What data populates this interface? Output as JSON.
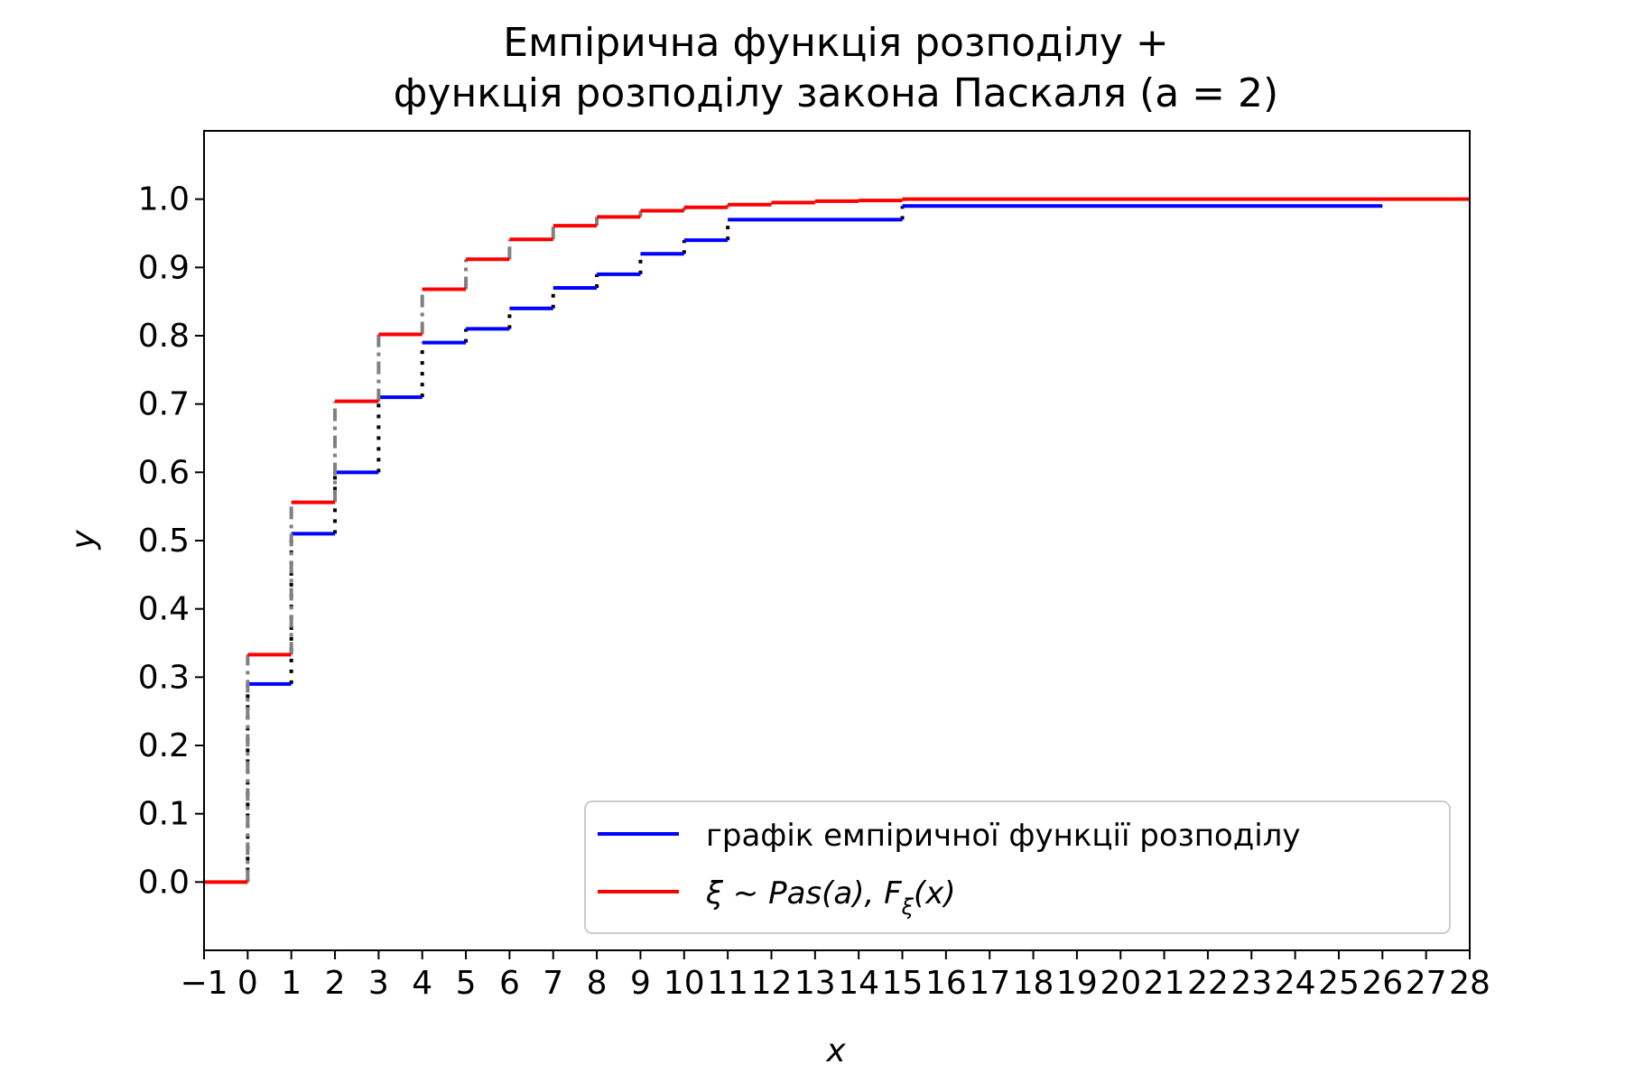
{
  "chart_data": {
    "type": "line",
    "title": [
      "Емпірична функція розподілу +",
      "функція розподілу закона Паскаля (a = 2)"
    ],
    "xlabel": "x",
    "ylabel": "y",
    "xlim": [
      -1,
      28
    ],
    "ylim": [
      -0.1,
      1.1
    ],
    "xticks": [
      -1,
      0,
      1,
      2,
      3,
      4,
      5,
      6,
      7,
      8,
      9,
      10,
      11,
      12,
      13,
      14,
      15,
      16,
      17,
      18,
      19,
      20,
      21,
      22,
      23,
      24,
      25,
      26,
      27,
      28
    ],
    "xtick_labels": [
      "−1",
      "0",
      "1",
      "2",
      "3",
      "4",
      "5",
      "6",
      "7",
      "8",
      "9",
      "10",
      "11",
      "12",
      "13",
      "14",
      "15",
      "16",
      "17",
      "18",
      "19",
      "20",
      "21",
      "22",
      "23",
      "24",
      "25",
      "26",
      "27",
      "28"
    ],
    "yticks": [
      0.0,
      0.1,
      0.2,
      0.3,
      0.4,
      0.5,
      0.6,
      0.7,
      0.8,
      0.9,
      1.0
    ],
    "ytick_labels": [
      "0.0",
      "0.1",
      "0.2",
      "0.3",
      "0.4",
      "0.5",
      "0.6",
      "0.7",
      "0.8",
      "0.9",
      "1.0"
    ],
    "grid": false,
    "legend_position": "lower-right",
    "series": [
      {
        "name": "графік емпіричної функції розподілу",
        "color": "#0000ff",
        "jump_style": "dotted",
        "jump_color": "#000000",
        "steps": [
          {
            "x0": 0,
            "x1": 1,
            "y": 0.29
          },
          {
            "x0": 1,
            "x1": 2,
            "y": 0.51
          },
          {
            "x0": 2,
            "x1": 3,
            "y": 0.6
          },
          {
            "x0": 3,
            "x1": 4,
            "y": 0.71
          },
          {
            "x0": 4,
            "x1": 5,
            "y": 0.79
          },
          {
            "x0": 5,
            "x1": 6,
            "y": 0.81
          },
          {
            "x0": 6,
            "x1": 7,
            "y": 0.84
          },
          {
            "x0": 7,
            "x1": 8,
            "y": 0.87
          },
          {
            "x0": 8,
            "x1": 9,
            "y": 0.89
          },
          {
            "x0": 9,
            "x1": 10,
            "y": 0.92
          },
          {
            "x0": 10,
            "x1": 11,
            "y": 0.94
          },
          {
            "x0": 11,
            "x1": 15,
            "y": 0.97
          },
          {
            "x0": 15,
            "x1": 26,
            "y": 0.99
          }
        ]
      },
      {
        "name_parts": [
          "ξ ∼ Pas(a), F",
          "ξ",
          "(x)"
        ],
        "color": "#ff0000",
        "jump_style": "dashdot",
        "jump_color": "#808080",
        "steps": [
          {
            "x0": -1,
            "x1": 0,
            "y": 0.0
          },
          {
            "x0": 0,
            "x1": 1,
            "y": 0.333
          },
          {
            "x0": 1,
            "x1": 2,
            "y": 0.556
          },
          {
            "x0": 2,
            "x1": 3,
            "y": 0.704
          },
          {
            "x0": 3,
            "x1": 4,
            "y": 0.802
          },
          {
            "x0": 4,
            "x1": 5,
            "y": 0.868
          },
          {
            "x0": 5,
            "x1": 6,
            "y": 0.912
          },
          {
            "x0": 6,
            "x1": 7,
            "y": 0.941
          },
          {
            "x0": 7,
            "x1": 8,
            "y": 0.961
          },
          {
            "x0": 8,
            "x1": 9,
            "y": 0.974
          },
          {
            "x0": 9,
            "x1": 10,
            "y": 0.983
          },
          {
            "x0": 10,
            "x1": 11,
            "y": 0.988
          },
          {
            "x0": 11,
            "x1": 12,
            "y": 0.992
          },
          {
            "x0": 12,
            "x1": 13,
            "y": 0.995
          },
          {
            "x0": 13,
            "x1": 14,
            "y": 0.997
          },
          {
            "x0": 14,
            "x1": 15,
            "y": 0.998
          },
          {
            "x0": 15,
            "x1": 28,
            "y": 1.0
          }
        ]
      }
    ]
  }
}
